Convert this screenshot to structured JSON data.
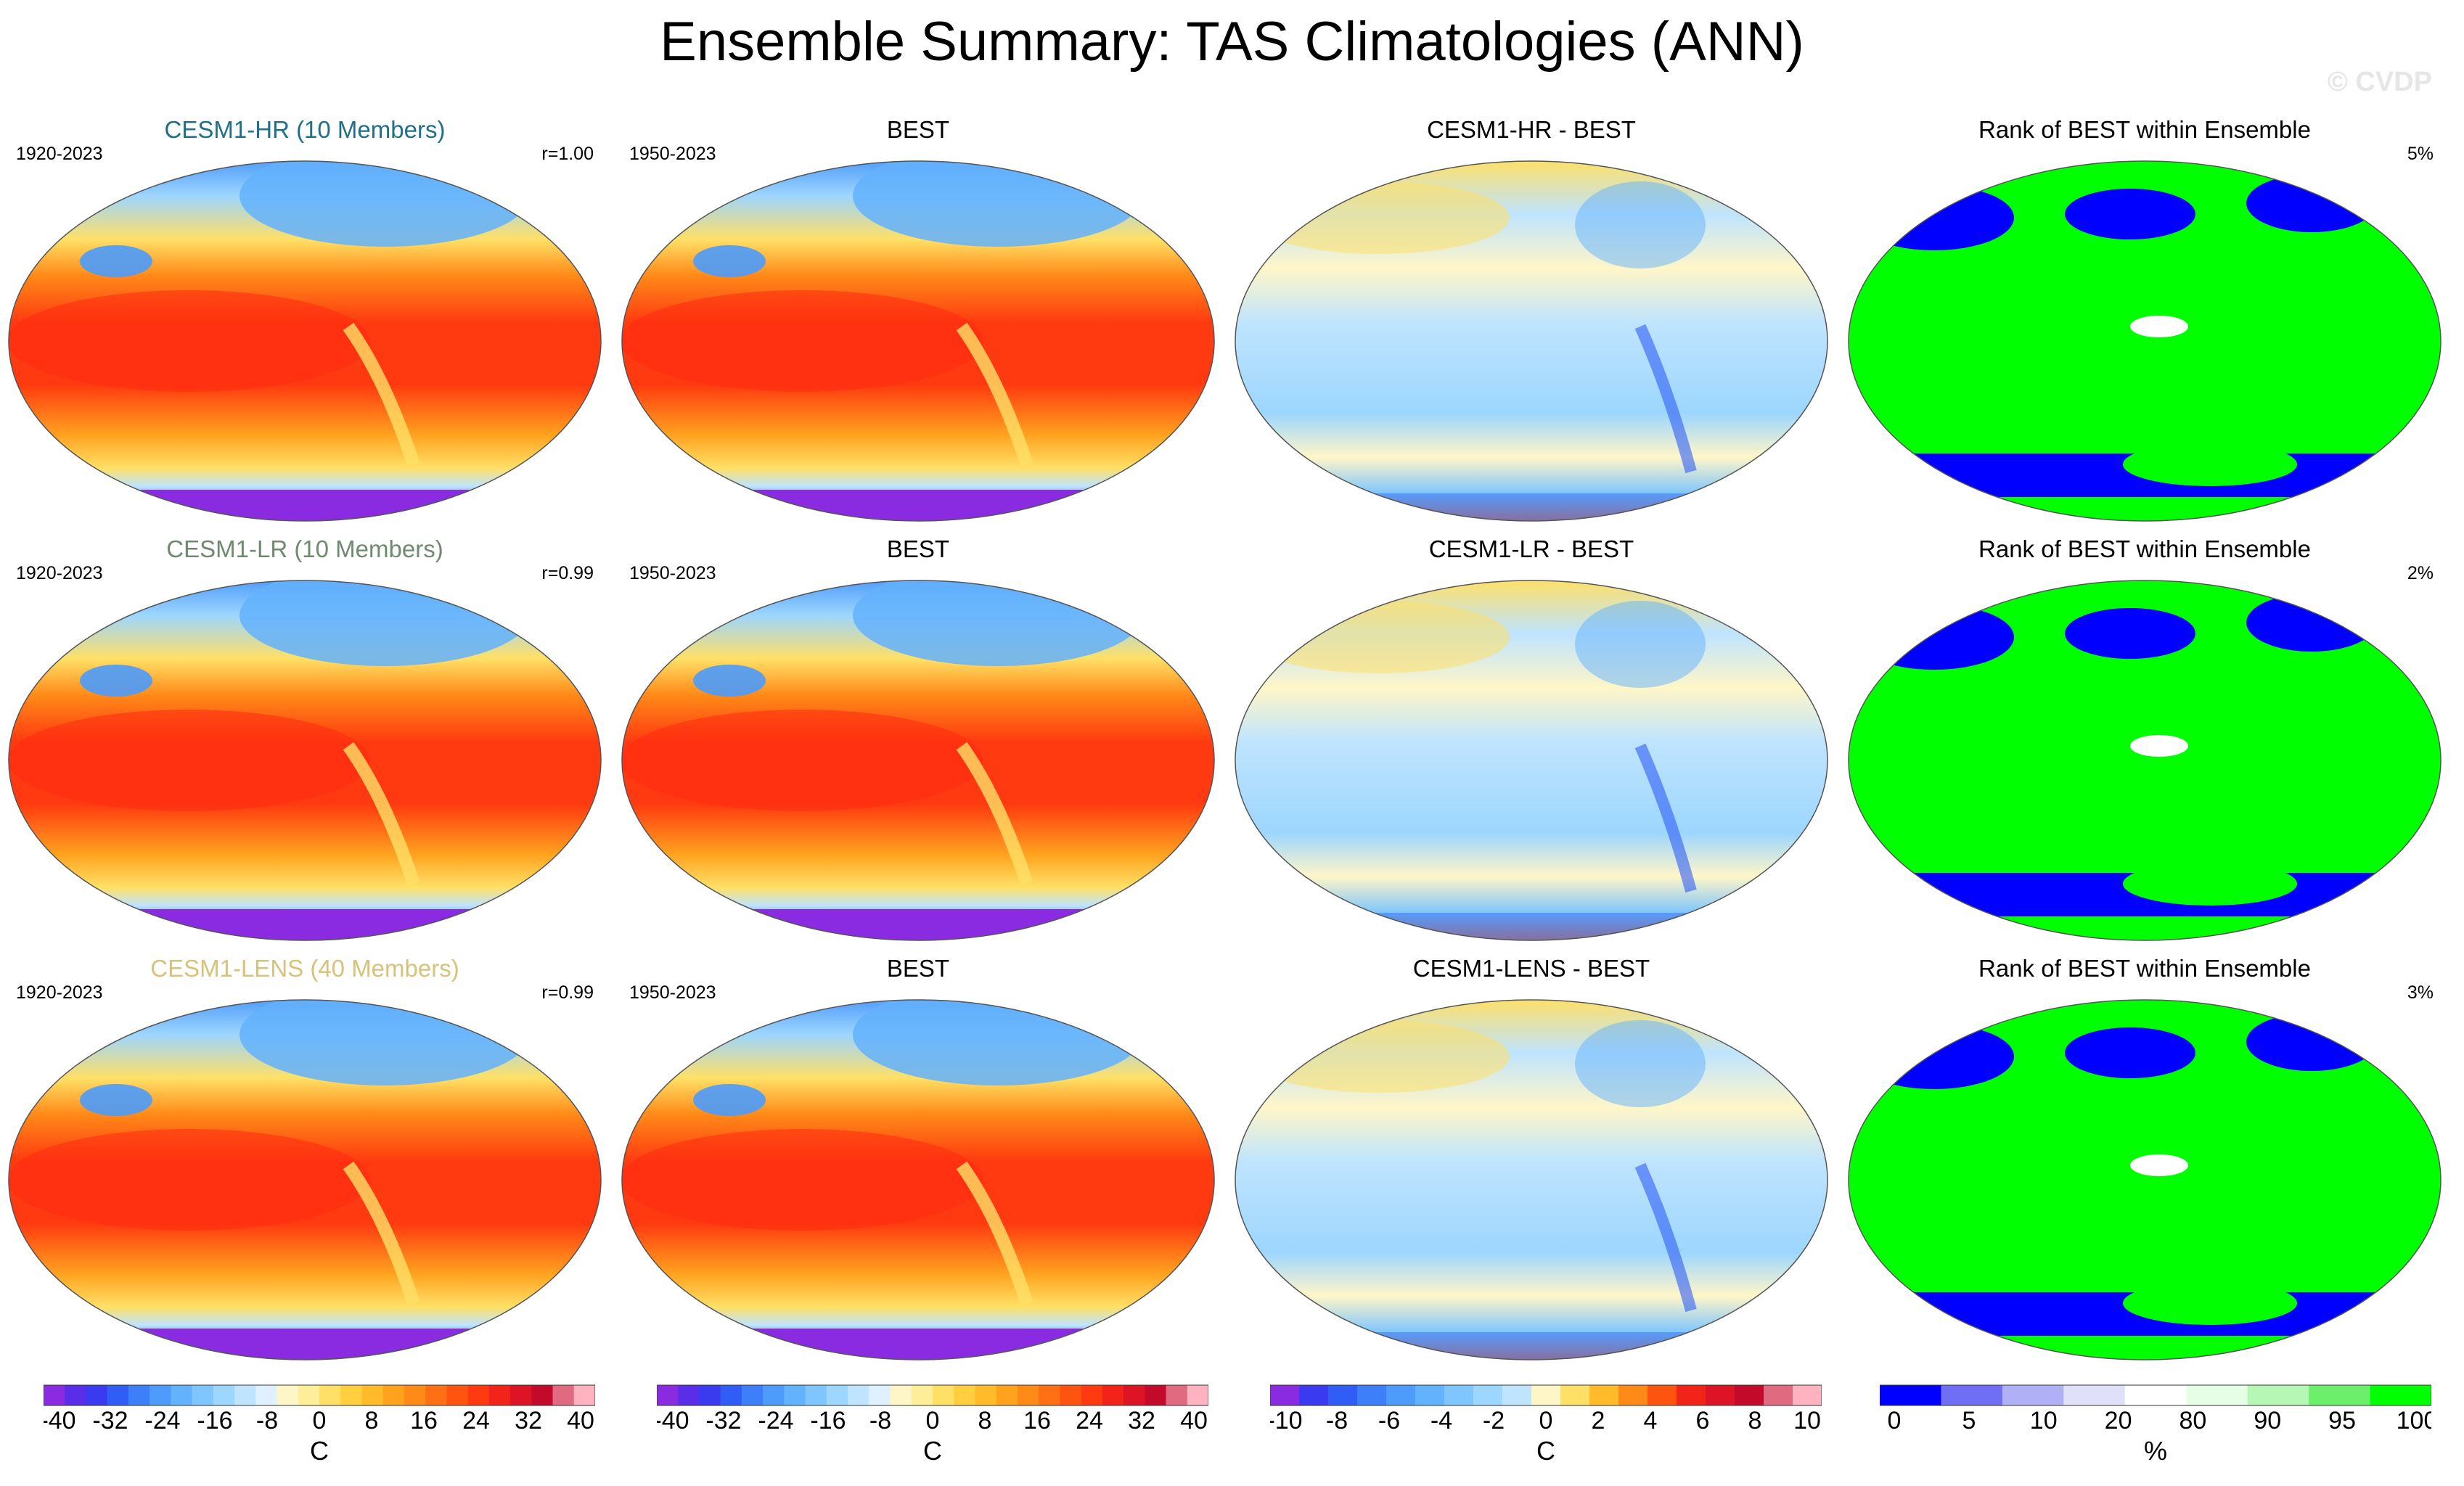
{
  "title": "Ensemble Summary: TAS Climatologies (ANN)",
  "watermark": "© CVDP",
  "rows": [
    {
      "ensemble": {
        "name": "CESM1-HR (10 Members)",
        "name_color": "#1f6f8b",
        "period": "1920-2023",
        "corr": "r=1.00"
      },
      "obs": {
        "name": "BEST",
        "period": "1950-2023"
      },
      "diff": {
        "name": "CESM1-HR - BEST"
      },
      "rank": {
        "name": "Rank of BEST within Ensemble",
        "pct": "5%"
      }
    },
    {
      "ensemble": {
        "name": "CESM1-LR (10 Members)",
        "name_color": "#6f8a6f",
        "period": "1920-2023",
        "corr": "r=0.99"
      },
      "obs": {
        "name": "BEST",
        "period": "1950-2023"
      },
      "diff": {
        "name": "CESM1-LR - BEST"
      },
      "rank": {
        "name": "Rank of BEST within Ensemble",
        "pct": "2%"
      }
    },
    {
      "ensemble": {
        "name": "CESM1-LENS (40 Members)",
        "name_color": "#d8c27a",
        "period": "1920-2023",
        "corr": "r=0.99"
      },
      "obs": {
        "name": "BEST",
        "period": "1950-2023"
      },
      "diff": {
        "name": "CESM1-LENS - BEST"
      },
      "rank": {
        "name": "Rank of BEST within Ensemble",
        "pct": "3%"
      }
    }
  ],
  "colorbars": [
    {
      "unit": "C",
      "labels": [
        "-40",
        "-32",
        "-24",
        "-16",
        "-8",
        "0",
        "8",
        "16",
        "24",
        "32",
        "40"
      ],
      "colors": [
        "#8a2be2",
        "#5a2ee8",
        "#3a3af0",
        "#2f5df5",
        "#3c7ff8",
        "#4d9bfb",
        "#63b2fd",
        "#7fc6fe",
        "#9dd6fe",
        "#bfe4fe",
        "#dff0ff",
        "#fff6c8",
        "#ffee99",
        "#ffe066",
        "#ffcf3f",
        "#ffbb2a",
        "#ffa31f",
        "#ff8a18",
        "#ff6f14",
        "#ff5410",
        "#ff3a10",
        "#f2241a",
        "#dd1426",
        "#c40a2a",
        "#e06a80",
        "#ffb3c1"
      ]
    },
    {
      "unit": "C",
      "labels": [
        "-40",
        "-32",
        "-24",
        "-16",
        "-8",
        "0",
        "8",
        "16",
        "24",
        "32",
        "40"
      ],
      "colors": [
        "#8a2be2",
        "#5a2ee8",
        "#3a3af0",
        "#2f5df5",
        "#3c7ff8",
        "#4d9bfb",
        "#63b2fd",
        "#7fc6fe",
        "#9dd6fe",
        "#bfe4fe",
        "#dff0ff",
        "#fff6c8",
        "#ffee99",
        "#ffe066",
        "#ffcf3f",
        "#ffbb2a",
        "#ffa31f",
        "#ff8a18",
        "#ff6f14",
        "#ff5410",
        "#ff3a10",
        "#f2241a",
        "#dd1426",
        "#c40a2a",
        "#e06a80",
        "#ffb3c1"
      ]
    },
    {
      "unit": "C",
      "labels": [
        "-10",
        "-8",
        "-6",
        "-4",
        "-2",
        "0",
        "2",
        "4",
        "6",
        "8",
        "10"
      ],
      "colors": [
        "#8a2be2",
        "#3a3af0",
        "#2f5df5",
        "#3c7ff8",
        "#4d9bfb",
        "#63b2fd",
        "#7fc6fe",
        "#9dd6fe",
        "#bfe4fe",
        "#fff6c8",
        "#ffe066",
        "#ffbb2a",
        "#ff8a18",
        "#ff5410",
        "#f2241a",
        "#dd1426",
        "#c40a2a",
        "#e06a80",
        "#ffb3c1"
      ]
    },
    {
      "unit": "%",
      "labels": [
        "0",
        "5",
        "10",
        "20",
        "80",
        "90",
        "95",
        "100"
      ],
      "colors": [
        "#0000ff",
        "#6f6ff5",
        "#b0b0f7",
        "#e0e0fb",
        "#ffffff",
        "#e6fde6",
        "#b6f7b6",
        "#6cf06c",
        "#00ff00"
      ]
    }
  ]
}
